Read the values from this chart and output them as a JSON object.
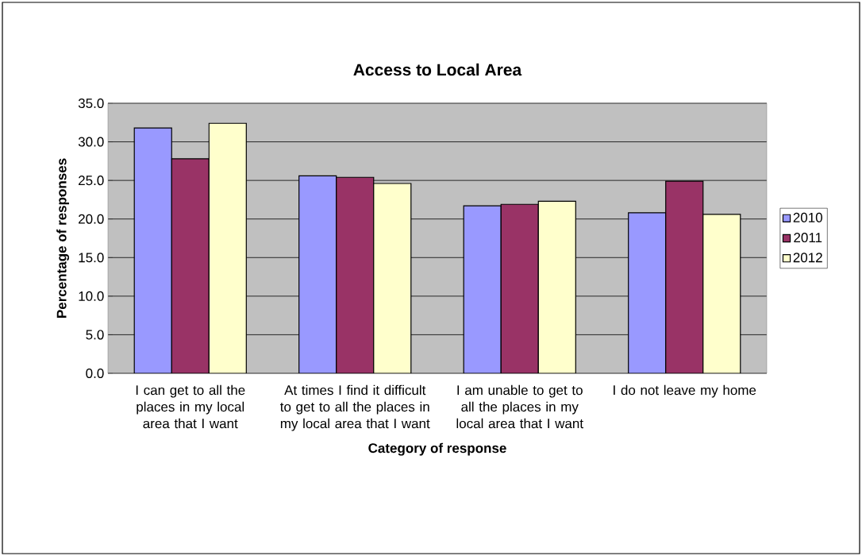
{
  "chart_data": {
    "type": "bar",
    "title": "Access to Local Area",
    "xlabel": "Category of response",
    "ylabel": "Percentage of responses",
    "categories": [
      "I can get to all the places in my local area that I want",
      "At times I find it difficult to get to all the places in my local area that I want",
      "I am unable to get to all the places in my local area that I want",
      "I do not leave my home"
    ],
    "series": [
      {
        "name": "2010",
        "color": "#9999ff",
        "values": [
          31.8,
          25.6,
          21.7,
          20.8
        ]
      },
      {
        "name": "2011",
        "color": "#993366",
        "values": [
          27.8,
          25.4,
          21.9,
          24.9
        ]
      },
      {
        "name": "2012",
        "color": "#ffffcc",
        "values": [
          32.4,
          24.6,
          22.3,
          20.6
        ]
      }
    ],
    "ylim": [
      0,
      35
    ],
    "yticks": [
      {
        "value": 0,
        "label": "0.0"
      },
      {
        "value": 5,
        "label": "5.0"
      },
      {
        "value": 10,
        "label": "10.0"
      },
      {
        "value": 15,
        "label": "15.0"
      },
      {
        "value": 20,
        "label": "20.0"
      },
      {
        "value": 25,
        "label": "25.0"
      },
      {
        "value": 30,
        "label": "30.0"
      },
      {
        "value": 35,
        "label": "35.0"
      }
    ],
    "grid": "y",
    "legend": "right"
  }
}
